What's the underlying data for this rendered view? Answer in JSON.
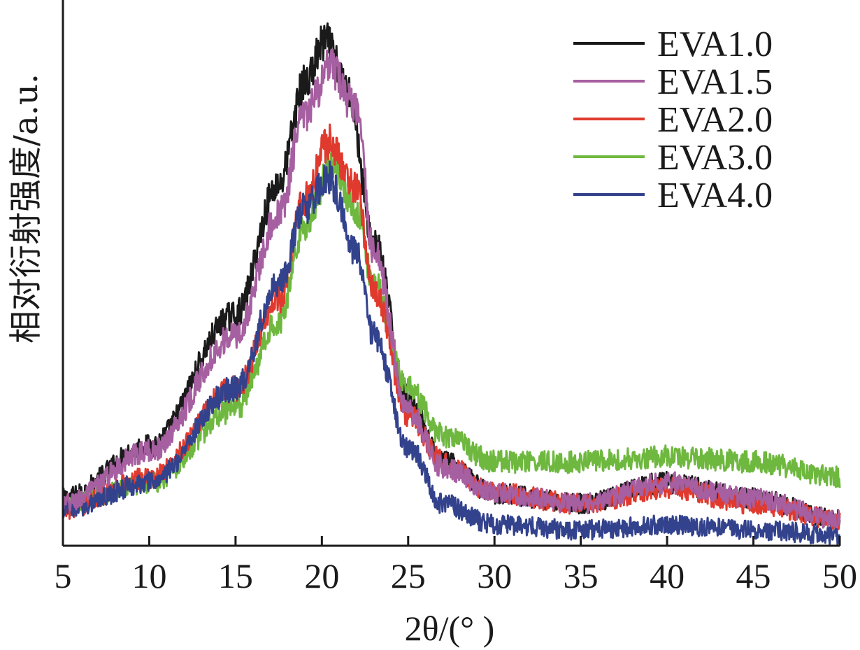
{
  "chart_data": {
    "type": "line",
    "xlabel": "2θ/(° )",
    "ylabel": "相对衍射强度/a.u.",
    "xlim": [
      5,
      50
    ],
    "ylim": [
      0,
      1
    ],
    "xticks": [
      "5",
      "10",
      "15",
      "20",
      "25",
      "30",
      "35",
      "40",
      "45",
      "50"
    ],
    "legend_position": "top-right",
    "grid": false,
    "peak_position": 20.3,
    "series": [
      {
        "name": "EVA1.0",
        "color": "#1a1a1a",
        "peak_x": 20.2,
        "peak_width": 3.2,
        "x": [
          5,
          10,
          15,
          17.5,
          19,
          20.2,
          21.5,
          23,
          25,
          27,
          30,
          35,
          40,
          45,
          50
        ],
        "values": [
          0.09,
          0.19,
          0.44,
          0.69,
          0.88,
          0.96,
          0.87,
          0.58,
          0.28,
          0.16,
          0.1,
          0.08,
          0.12,
          0.09,
          0.05
        ]
      },
      {
        "name": "EVA1.5",
        "color": "#a65fa0",
        "peak_x": 20.5,
        "peak_width": 3.0,
        "x": [
          5,
          10,
          15,
          17.5,
          19,
          20.5,
          22,
          23,
          25,
          27,
          30,
          35,
          40,
          45,
          50
        ],
        "values": [
          0.08,
          0.18,
          0.4,
          0.63,
          0.82,
          0.91,
          0.83,
          0.56,
          0.26,
          0.15,
          0.1,
          0.08,
          0.12,
          0.09,
          0.05
        ]
      },
      {
        "name": "EVA2.0",
        "color": "#e03a2e",
        "peak_x": 20.4,
        "peak_width": 2.7,
        "x": [
          5,
          10,
          15,
          17.5,
          19,
          20.4,
          22,
          23,
          25,
          27,
          30,
          35,
          40,
          45,
          50
        ],
        "values": [
          0.07,
          0.13,
          0.3,
          0.47,
          0.66,
          0.77,
          0.68,
          0.49,
          0.25,
          0.16,
          0.1,
          0.08,
          0.11,
          0.08,
          0.05
        ]
      },
      {
        "name": "EVA3.0",
        "color": "#6fb83f",
        "peak_x": 20.6,
        "peak_width": 3.0,
        "x": [
          5,
          10,
          15,
          17.5,
          19,
          20.6,
          22,
          23,
          25,
          27,
          30,
          35,
          40,
          45,
          50
        ],
        "values": [
          0.08,
          0.12,
          0.26,
          0.43,
          0.61,
          0.73,
          0.64,
          0.5,
          0.3,
          0.21,
          0.16,
          0.16,
          0.17,
          0.16,
          0.13
        ]
      },
      {
        "name": "EVA4.0",
        "color": "#33428c",
        "peak_x": 20.4,
        "peak_width": 2.6,
        "x": [
          5,
          10,
          15,
          17.5,
          19,
          20.4,
          22,
          23,
          25,
          27,
          30,
          35,
          40,
          45,
          50
        ],
        "values": [
          0.07,
          0.12,
          0.3,
          0.5,
          0.64,
          0.7,
          0.56,
          0.4,
          0.19,
          0.08,
          0.04,
          0.03,
          0.04,
          0.03,
          0.02
        ]
      }
    ]
  }
}
